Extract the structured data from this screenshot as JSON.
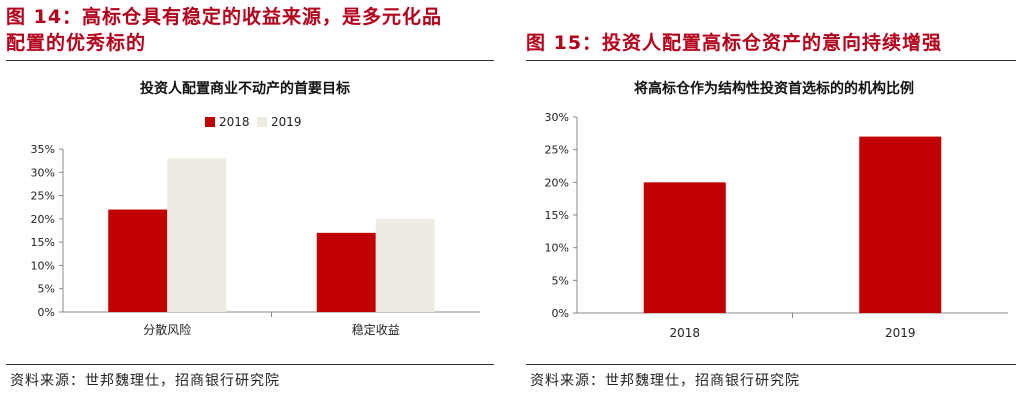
{
  "left": {
    "figure_title": "图 14：高标仓具有稳定的收益来源，是多元化品配置的优秀标的",
    "figure_title_line1": "图 14：高标仓具有稳定的收益来源，是多元化品",
    "figure_title_line2": "配置的优秀标的",
    "source": "资料来源：世邦魏理仕，招商银行研究院",
    "chart_data": {
      "type": "bar",
      "title": "投资人配置商业不动产的首要目标",
      "categories": [
        "分散风险",
        "稳定收益"
      ],
      "series": [
        {
          "name": "2018",
          "values": [
            22,
            17
          ],
          "color": "#c00000"
        },
        {
          "name": "2019",
          "values": [
            33,
            20
          ],
          "color": "#eeebe2"
        }
      ],
      "ylim": [
        0,
        35
      ],
      "yticks": [
        0,
        5,
        10,
        15,
        20,
        25,
        30,
        35
      ],
      "ytick_labels": [
        "0%",
        "5%",
        "10%",
        "15%",
        "20%",
        "25%",
        "30%",
        "35%"
      ],
      "legend": "top-center",
      "grid": false
    }
  },
  "right": {
    "figure_title": "图 15：投资人配置高标仓资产的意向持续增强",
    "source": "资料来源：世邦魏理仕，招商银行研究院",
    "chart_data": {
      "type": "bar",
      "title": "将高标仓作为结构性投资首选标的的机构比例",
      "categories": [
        "2018",
        "2019"
      ],
      "values": [
        20,
        27
      ],
      "color": "#c00000",
      "ylim": [
        0,
        30
      ],
      "yticks": [
        0,
        5,
        10,
        15,
        20,
        25,
        30
      ],
      "ytick_labels": [
        "0%",
        "5%",
        "10%",
        "15%",
        "20%",
        "25%",
        "30%"
      ],
      "grid": false
    }
  }
}
